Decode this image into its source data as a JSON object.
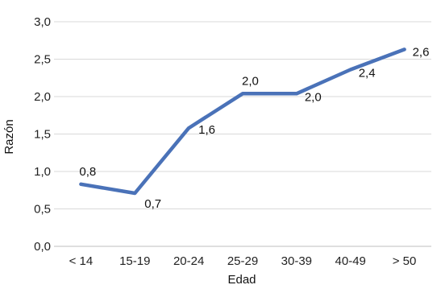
{
  "chart_data": {
    "type": "line",
    "title": "",
    "xlabel": "Edad",
    "ylabel": "Razón",
    "categories": [
      "< 14",
      "15-19",
      "20-24",
      "25-29",
      "30-39",
      "40-49",
      "> 50"
    ],
    "series": [
      {
        "values": [
          0.83,
          0.71,
          1.58,
          2.04,
          2.04,
          2.36,
          2.63
        ],
        "labels": [
          "0,8",
          "0,7",
          "1,6",
          "2,0",
          "2,0",
          "2,4",
          "2,6"
        ],
        "color": "#4a72b8"
      }
    ],
    "ylim": [
      0,
      3
    ],
    "yticks": [
      0,
      0.5,
      1,
      1.5,
      2,
      2.5,
      3
    ],
    "ytick_labels": [
      "0,0",
      "0,5",
      "1,0",
      "1,5",
      "2,0",
      "2,5",
      "3,0"
    ],
    "grid": "horizontal",
    "gridline_color": "#d9d9d9",
    "legend": "none"
  }
}
